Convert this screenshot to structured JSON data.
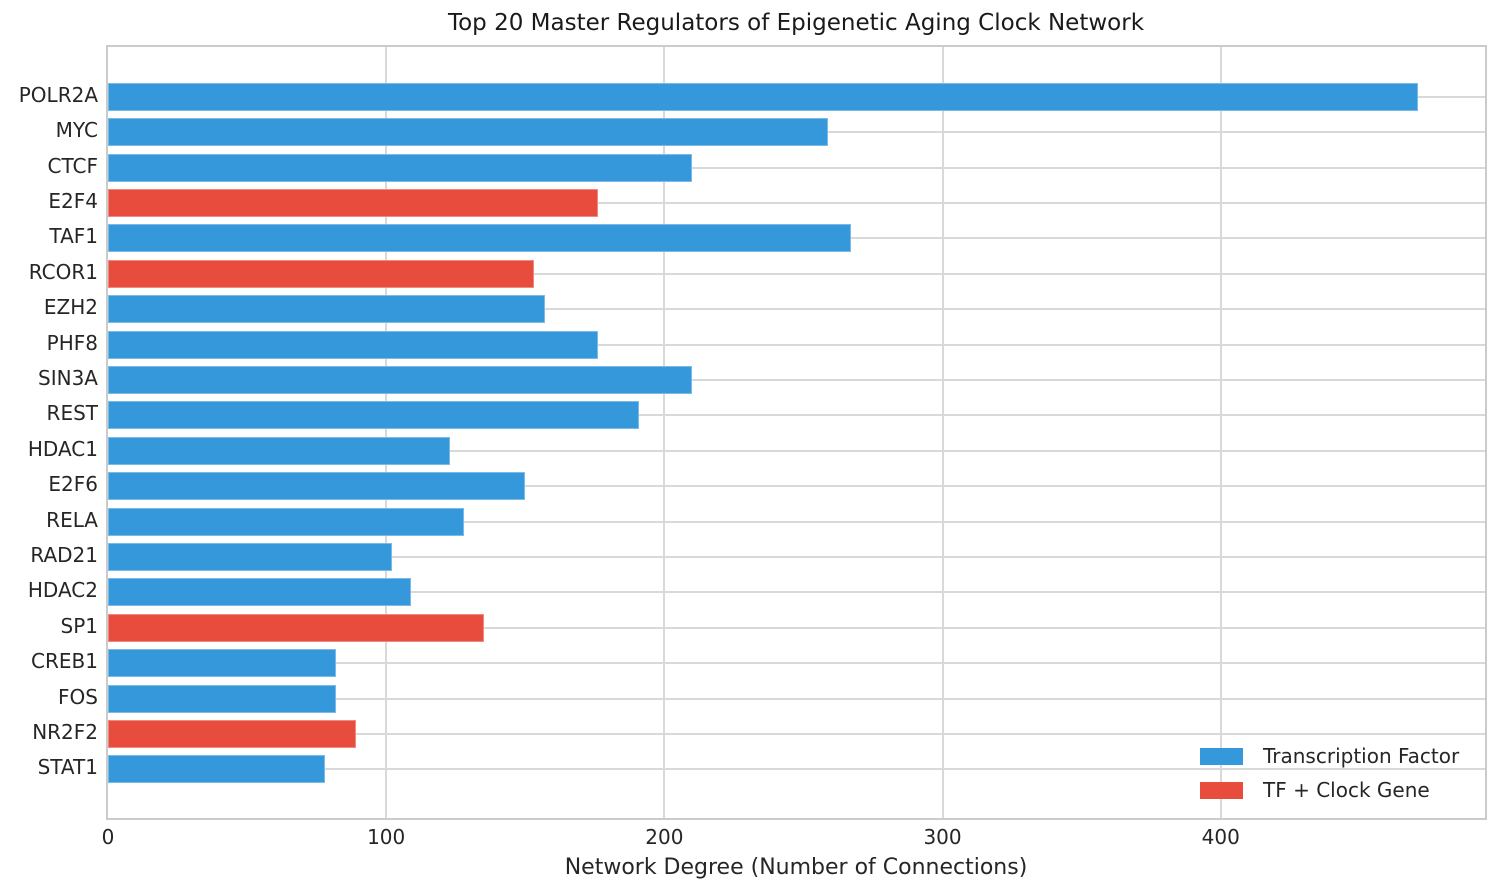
{
  "figure": {
    "background": "#ffffff"
  },
  "chart_data": {
    "type": "bar",
    "orientation": "horizontal",
    "title": "Top 20 Master Regulators of Epigenetic Aging Clock Network",
    "xlabel": "Network Degree (Number of Connections)",
    "ylabel": "",
    "xlim": [
      0,
      495
    ],
    "xticks": [
      0,
      100,
      200,
      300,
      400
    ],
    "grid": "both",
    "legend_position": "lower right",
    "categories": [
      "POLR2A",
      "MYC",
      "CTCF",
      "E2F4",
      "TAF1",
      "RCOR1",
      "EZH2",
      "PHF8",
      "SIN3A",
      "REST",
      "HDAC1",
      "E2F6",
      "RELA",
      "RAD21",
      "HDAC2",
      "SP1",
      "CREB1",
      "FOS",
      "NR2F2",
      "STAT1"
    ],
    "values": [
      471,
      259,
      210,
      176,
      267,
      153,
      157,
      176,
      210,
      191,
      123,
      150,
      128,
      102,
      109,
      135,
      82,
      82,
      89,
      78
    ],
    "bar_types": [
      "tf",
      "tf",
      "tf",
      "clock",
      "tf",
      "clock",
      "tf",
      "tf",
      "tf",
      "tf",
      "tf",
      "tf",
      "tf",
      "tf",
      "tf",
      "clock",
      "tf",
      "tf",
      "clock",
      "tf"
    ],
    "colors": {
      "tf": "#3498db",
      "clock": "#e74c3c"
    },
    "legend": {
      "entries": [
        {
          "label": "Transcription Factor",
          "color_key": "tf"
        },
        {
          "label": "TF + Clock Gene",
          "color_key": "clock"
        }
      ]
    }
  }
}
